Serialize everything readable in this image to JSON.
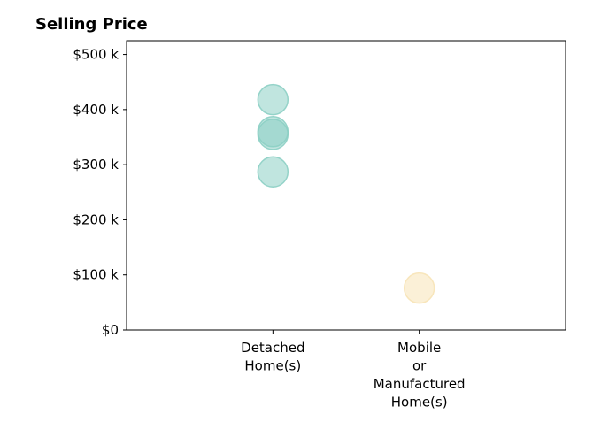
{
  "chart_data": {
    "type": "scatter",
    "title": "Selling Price",
    "xlabel": "",
    "ylabel": "",
    "categories": [
      [
        "Detached",
        "Home(s)"
      ],
      [
        "Mobile",
        "or",
        "Manufactured",
        "Home(s)"
      ]
    ],
    "x_range": [
      -1,
      2
    ],
    "ylim": [
      0,
      525000
    ],
    "yticks": [
      {
        "value": 0,
        "label": "$0"
      },
      {
        "value": 100000,
        "label": "$100 k"
      },
      {
        "value": 200000,
        "label": "$200 k"
      },
      {
        "value": 300000,
        "label": "$300 k"
      },
      {
        "value": 400000,
        "label": "$400 k"
      },
      {
        "value": 500000,
        "label": "$500 k"
      }
    ],
    "grid": false,
    "series": [
      {
        "category_index": 0,
        "color": "#8ccfc4",
        "values": [
          418000,
          360000,
          355000,
          287000
        ]
      },
      {
        "category_index": 1,
        "color": "#f7e3b6",
        "values": [
          76000
        ]
      }
    ]
  }
}
